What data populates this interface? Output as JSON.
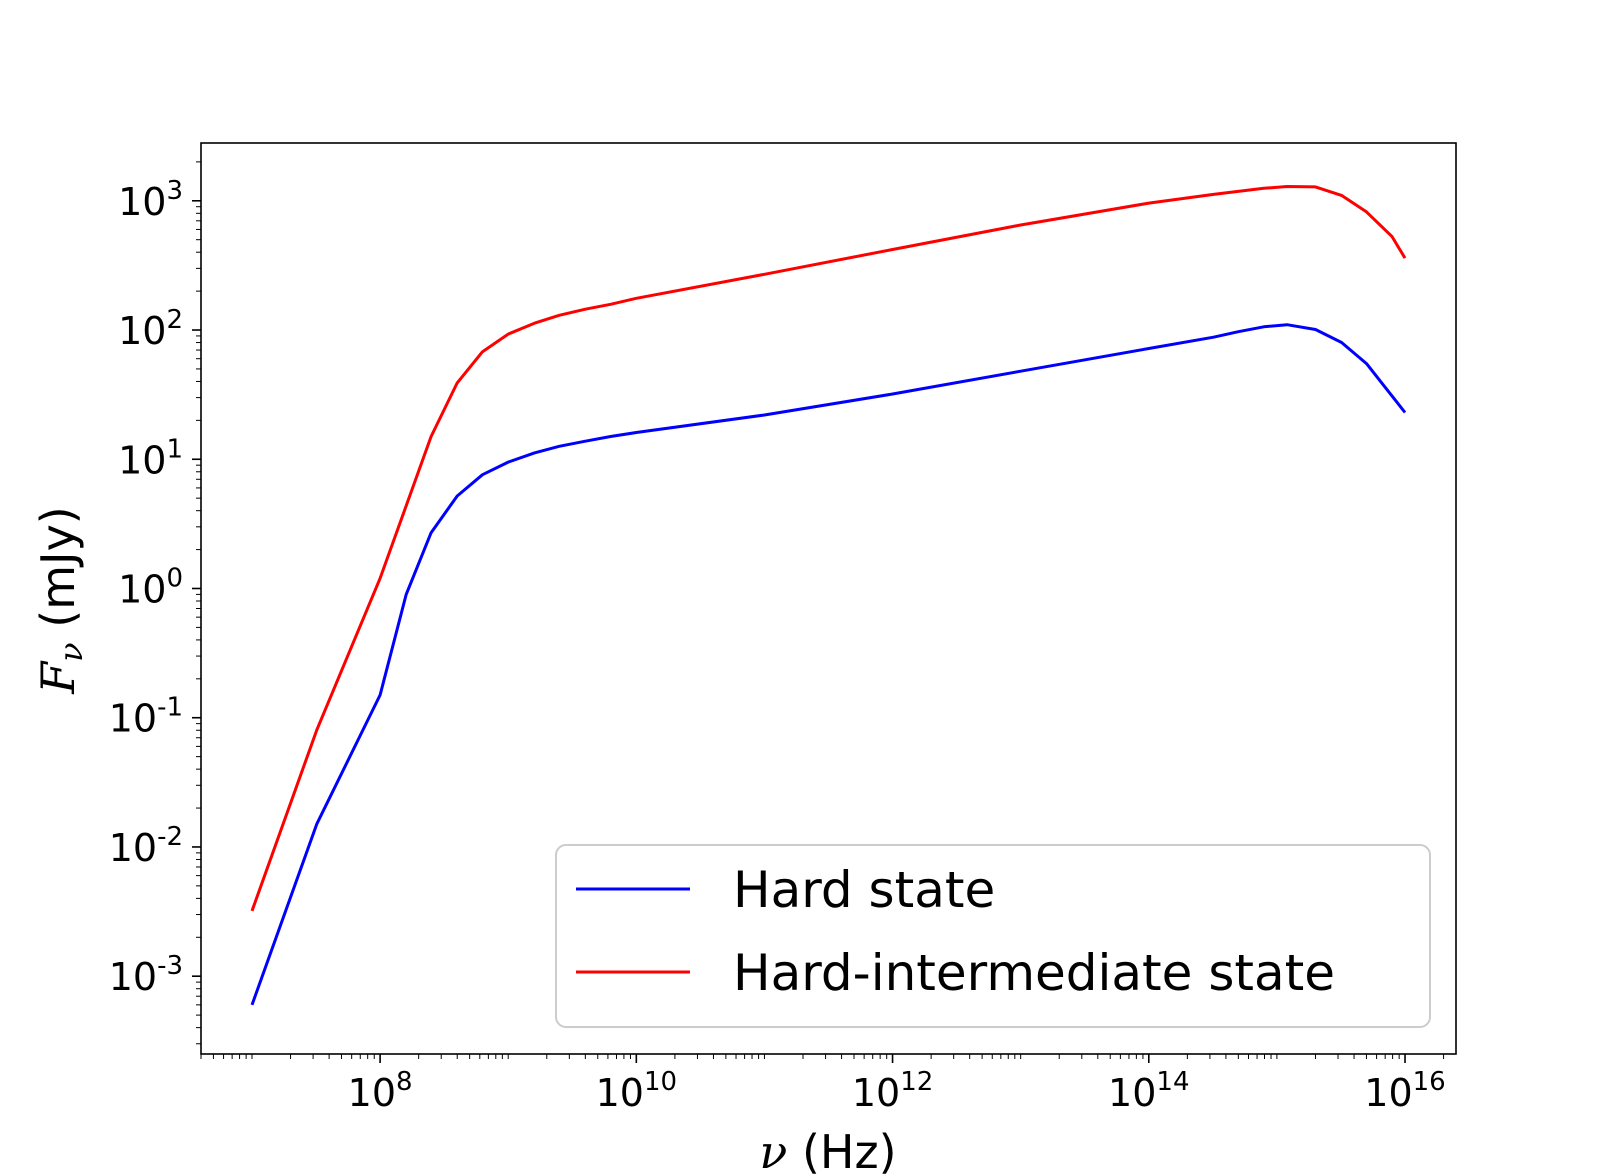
{
  "chart_data": {
    "type": "line",
    "scale": {
      "x": "log",
      "y": "log"
    },
    "xlim": [
      4000000.0,
      2.5e+16
    ],
    "ylim": [
      0.00025,
      2800.0
    ],
    "grid": false,
    "legend_position": "lower-right",
    "xlabel": {
      "symbol": "ν",
      "unit": " (Hz)"
    },
    "ylabel": {
      "symbol": "F",
      "subscript": "ν",
      "unit": " (mJy)"
    },
    "x_ticks": [
      {
        "value": 100000000.0,
        "base": "10",
        "exp": "8"
      },
      {
        "value": 10000000000.0,
        "base": "10",
        "exp": "10"
      },
      {
        "value": 1000000000000.0,
        "base": "10",
        "exp": "12"
      },
      {
        "value": 100000000000000.0,
        "base": "10",
        "exp": "14"
      },
      {
        "value": 1e+16,
        "base": "10",
        "exp": "16"
      }
    ],
    "y_ticks": [
      {
        "value": 0.001,
        "base": "10",
        "exp": "-3"
      },
      {
        "value": 0.01,
        "base": "10",
        "exp": "-2"
      },
      {
        "value": 0.1,
        "base": "10",
        "exp": "-1"
      },
      {
        "value": 1.0,
        "base": "10",
        "exp": "0"
      },
      {
        "value": 10.0,
        "base": "10",
        "exp": "1"
      },
      {
        "value": 100.0,
        "base": "10",
        "exp": "2"
      },
      {
        "value": 1000.0,
        "base": "10",
        "exp": "3"
      }
    ],
    "series": [
      {
        "name": "Hard state",
        "color": "#0000ff",
        "points": [
          [
            10000000.0,
            0.0006
          ],
          [
            32000000.0,
            0.015
          ],
          [
            100000000.0,
            0.15
          ],
          [
            160000000.0,
            0.9
          ],
          [
            250000000.0,
            2.7
          ],
          [
            400000000.0,
            5.2
          ],
          [
            630000000.0,
            7.6
          ],
          [
            1000000000.0,
            9.5
          ],
          [
            1600000000.0,
            11.2
          ],
          [
            2500000000.0,
            12.6
          ],
          [
            4000000000.0,
            13.8
          ],
          [
            6300000000.0,
            15.0
          ],
          [
            10000000000.0,
            16.1
          ],
          [
            100000000000.0,
            22.0
          ],
          [
            1000000000000.0,
            32.0
          ],
          [
            10000000000000.0,
            48.0
          ],
          [
            100000000000000.0,
            72.0
          ],
          [
            320000000000000.0,
            88.0
          ],
          [
            500000000000000.0,
            97.0
          ],
          [
            790000000000000.0,
            106.0
          ],
          [
            1200000000000000.0,
            110.0
          ],
          [
            2000000000000000.0,
            101.0
          ],
          [
            3200000000000000.0,
            80.0
          ],
          [
            5000000000000000.0,
            55.0
          ],
          [
            1e+16,
            23.0
          ]
        ]
      },
      {
        "name": "Hard-intermediate state",
        "color": "#ff0000",
        "points": [
          [
            10000000.0,
            0.0032
          ],
          [
            32000000.0,
            0.08
          ],
          [
            100000000.0,
            1.2
          ],
          [
            250000000.0,
            15.0
          ],
          [
            400000000.0,
            39.0
          ],
          [
            630000000.0,
            68.0
          ],
          [
            1000000000.0,
            93.0
          ],
          [
            1600000000.0,
            113.0
          ],
          [
            2500000000.0,
            130.0
          ],
          [
            4000000000.0,
            145.0
          ],
          [
            6300000000.0,
            158.0
          ],
          [
            10000000000.0,
            176.0
          ],
          [
            100000000000.0,
            270.0
          ],
          [
            1000000000000.0,
            420.0
          ],
          [
            10000000000000.0,
            650.0
          ],
          [
            100000000000000.0,
            960.0
          ],
          [
            320000000000000.0,
            1120.0
          ],
          [
            790000000000000.0,
            1250.0
          ],
          [
            1200000000000000.0,
            1290.0
          ],
          [
            2000000000000000.0,
            1280.0
          ],
          [
            3200000000000000.0,
            1100.0
          ],
          [
            5000000000000000.0,
            820.0
          ],
          [
            7900000000000000.0,
            530.0
          ],
          [
            1e+16,
            360.0
          ]
        ]
      }
    ]
  }
}
